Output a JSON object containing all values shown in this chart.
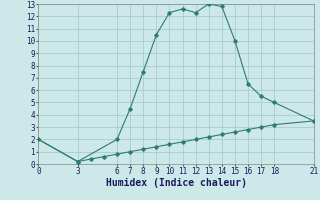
{
  "title": "",
  "xlabel": "Humidex (Indice chaleur)",
  "ylabel": "",
  "bg_color": "#cce8e8",
  "grid_color": "#aacccc",
  "line_color": "#2e7d6e",
  "upper_x": [
    0,
    3,
    6,
    7,
    8,
    9,
    10,
    11,
    12,
    13,
    14,
    15,
    16,
    17,
    18,
    21
  ],
  "upper_y": [
    2.0,
    0.2,
    2.0,
    4.5,
    7.5,
    10.5,
    12.3,
    12.6,
    12.3,
    13.0,
    12.8,
    10.0,
    6.5,
    5.5,
    5.0,
    3.5
  ],
  "lower_x": [
    0,
    3,
    4,
    5,
    6,
    7,
    8,
    9,
    10,
    11,
    12,
    13,
    14,
    15,
    16,
    17,
    18,
    21
  ],
  "lower_y": [
    2.0,
    0.2,
    0.4,
    0.6,
    0.8,
    1.0,
    1.2,
    1.4,
    1.6,
    1.8,
    2.0,
    2.2,
    2.4,
    2.6,
    2.8,
    3.0,
    3.2,
    3.5
  ],
  "xlim": [
    0,
    21
  ],
  "ylim": [
    0,
    13
  ],
  "xticks": [
    0,
    3,
    6,
    7,
    8,
    9,
    10,
    11,
    12,
    13,
    14,
    15,
    16,
    17,
    18,
    21
  ],
  "yticks": [
    0,
    1,
    2,
    3,
    4,
    5,
    6,
    7,
    8,
    9,
    10,
    11,
    12,
    13
  ],
  "tick_fontsize": 5.5,
  "xlabel_fontsize": 7,
  "marker": "D",
  "marker_size": 1.8,
  "linewidth": 0.8
}
